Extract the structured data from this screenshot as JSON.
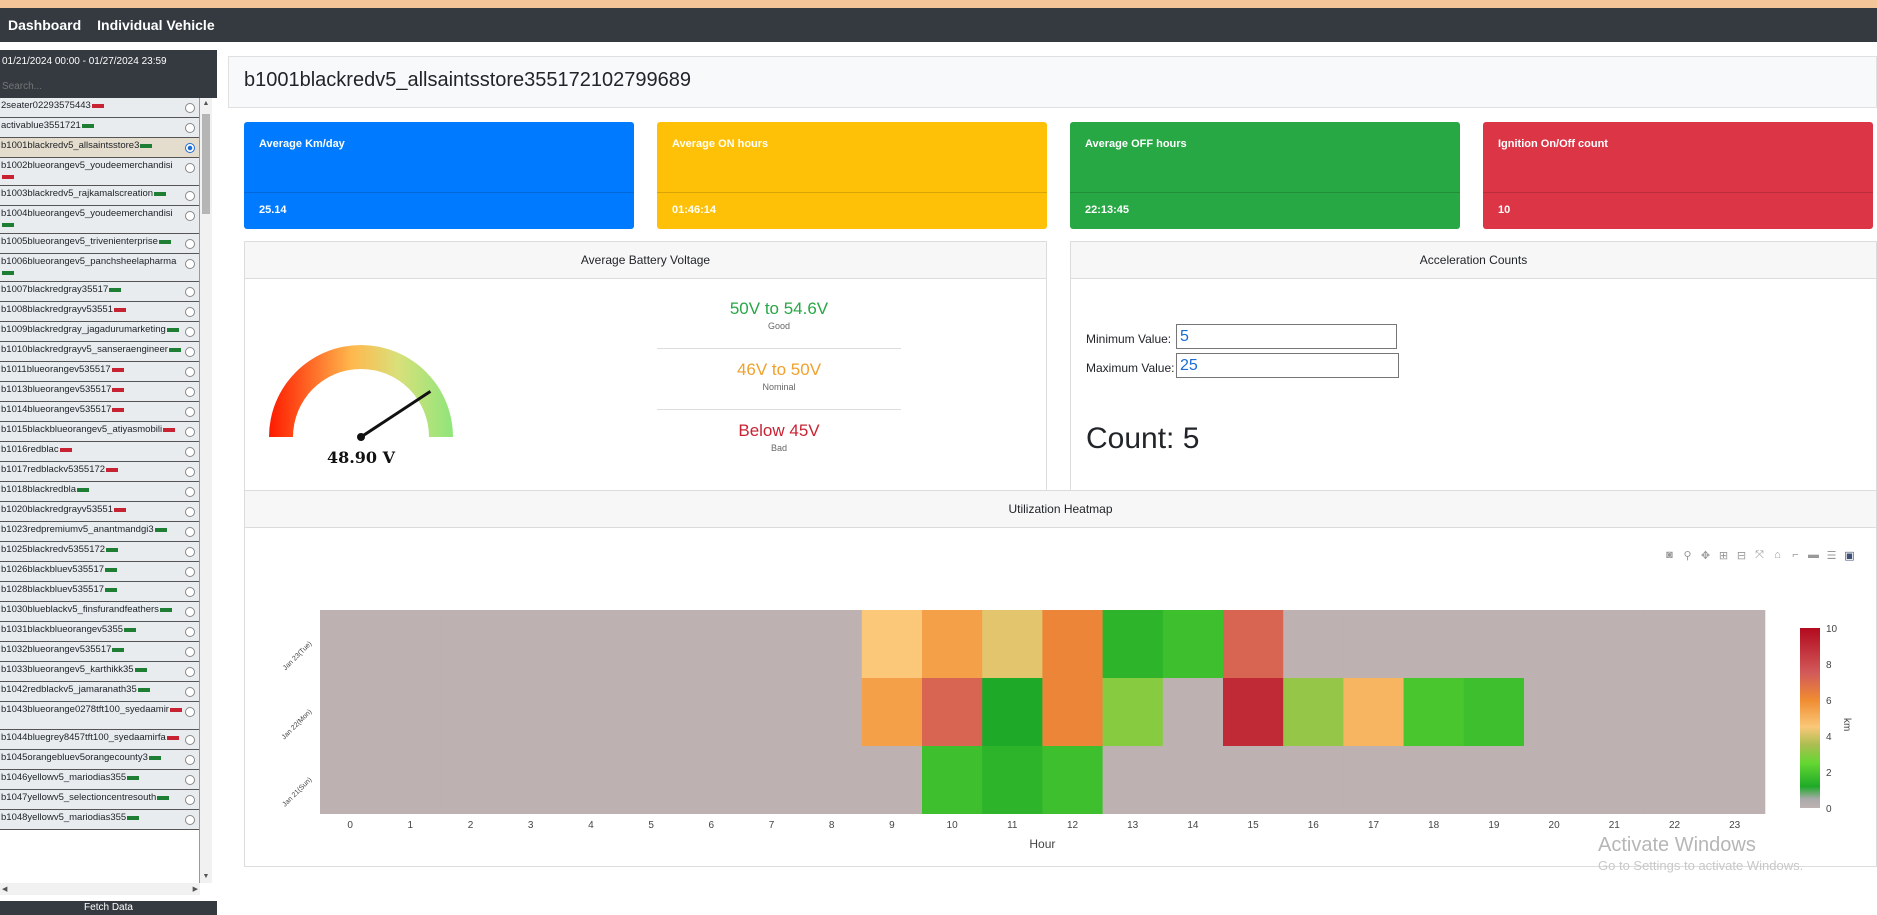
{
  "nav": {
    "items": [
      "Dashboard",
      "Individual Vehicle"
    ]
  },
  "sidebar": {
    "date_range": "01/21/2024 00:00 - 01/27/2024 23:59",
    "search_placeholder": "Search...",
    "vehicles": [
      {
        "label": "2seater02293575443",
        "battery": "red",
        "tall": false,
        "selected": false
      },
      {
        "label": "activablue3551721",
        "battery": "green",
        "tall": false,
        "selected": false
      },
      {
        "label": "b1001blackredv5_allsaintsstore3",
        "battery": "green",
        "tall": false,
        "selected": true
      },
      {
        "label": "b1002blueorangev5_youdeemerchandisi",
        "battery": "red",
        "tall": true,
        "selected": false
      },
      {
        "label": "b1003blackredv5_rajkamalscreation",
        "battery": "green",
        "tall": false,
        "selected": false
      },
      {
        "label": "b1004blueorangev5_youdeemerchandisi",
        "battery": "green",
        "tall": true,
        "selected": false
      },
      {
        "label": "b1005blueorangev5_trivenienterprise",
        "battery": "green",
        "tall": false,
        "selected": false
      },
      {
        "label": "b1006blueorangev5_panchsheelapharma",
        "battery": "green",
        "tall": true,
        "selected": false
      },
      {
        "label": "b1007blackredgray35517",
        "battery": "green",
        "tall": false,
        "selected": false
      },
      {
        "label": "b1008blackredgrayv53551",
        "battery": "red",
        "tall": false,
        "selected": false
      },
      {
        "label": "b1009blackredgray_jagadurumarketing",
        "battery": "green",
        "tall": false,
        "selected": false
      },
      {
        "label": "b1010blackredgrayv5_sanseraengineer",
        "battery": "green",
        "tall": false,
        "selected": false
      },
      {
        "label": "b1011blueorangev535517",
        "battery": "red",
        "tall": false,
        "selected": false
      },
      {
        "label": "b1013blueorangev535517",
        "battery": "red",
        "tall": false,
        "selected": false
      },
      {
        "label": "b1014blueorangev535517",
        "battery": "red",
        "tall": false,
        "selected": false
      },
      {
        "label": "b1015blackblueorangev5_atiyasmobili",
        "battery": "red",
        "tall": false,
        "selected": false
      },
      {
        "label": "b1016redblac",
        "battery": "red",
        "tall": false,
        "selected": false
      },
      {
        "label": "b1017redblackv5355172",
        "battery": "red",
        "tall": false,
        "selected": false
      },
      {
        "label": "b1018blackredbla",
        "battery": "green",
        "tall": false,
        "selected": false
      },
      {
        "label": "b1020blackredgrayv53551",
        "battery": "red",
        "tall": false,
        "selected": false
      },
      {
        "label": "b1023redpremiumv5_anantmandgi3",
        "battery": "green",
        "tall": false,
        "selected": false
      },
      {
        "label": "b1025blackredv5355172",
        "battery": "green",
        "tall": false,
        "selected": false
      },
      {
        "label": "b1026blackbluev535517",
        "battery": "green",
        "tall": false,
        "selected": false
      },
      {
        "label": "b1028blackbluev535517",
        "battery": "green",
        "tall": false,
        "selected": false
      },
      {
        "label": "b1030blueblackv5_finsfurandfeathers",
        "battery": "green",
        "tall": false,
        "selected": false
      },
      {
        "label": "b1031blackblueorangev5355",
        "battery": "green",
        "tall": false,
        "selected": false
      },
      {
        "label": "b1032blueorangev535517",
        "battery": "green",
        "tall": false,
        "selected": false
      },
      {
        "label": "b1033blueorangev5_karthikk35",
        "battery": "green",
        "tall": false,
        "selected": false
      },
      {
        "label": "b1042redblackv5_jamaranath35",
        "battery": "green",
        "tall": false,
        "selected": false
      },
      {
        "label": "b1043blueorange0278tft100_syedaamir",
        "battery": "red",
        "tall": true,
        "selected": false
      },
      {
        "label": "b1044bluegrey8457tft100_syedaamirfa",
        "battery": "red",
        "tall": false,
        "selected": false
      },
      {
        "label": "b1045orangebluev5orangecounty3",
        "battery": "green",
        "tall": false,
        "selected": false
      },
      {
        "label": "b1046yellowv5_mariodias355",
        "battery": "green",
        "tall": false,
        "selected": false
      },
      {
        "label": "b1047yellowv5_selectioncentresouth",
        "battery": "green",
        "tall": false,
        "selected": false
      },
      {
        "label": "b1048yellowv5_mariodias355",
        "battery": "green",
        "tall": false,
        "selected": false
      }
    ],
    "fetch_label": "Fetch Data"
  },
  "vehicle_title": "b1001blackredv5_allsaintsstore355172102799689",
  "cards": [
    {
      "title": "Average Km/day",
      "value": "25.14",
      "color": "#007bff"
    },
    {
      "title": "Average ON hours",
      "value": "01:46:14",
      "color": "#ffc107"
    },
    {
      "title": "Average OFF hours",
      "value": "22:13:45",
      "color": "#28a745"
    },
    {
      "title": "Ignition On/Off count",
      "value": "10",
      "color": "#dc3545"
    }
  ],
  "battery": {
    "panel_title": "Average Battery Voltage",
    "gauge_value": 48.9,
    "gauge_label": "48.90 V",
    "ranges": [
      {
        "title": "50V to 54.6V",
        "sub": "Good",
        "color": "#28a745"
      },
      {
        "title": "46V to 50V",
        "sub": "Nominal",
        "color": "#f0a12c"
      },
      {
        "title": "Below 45V",
        "sub": "Bad",
        "color": "#c82333"
      }
    ]
  },
  "accel": {
    "panel_title": "Acceleration Counts",
    "min_label": "Minimum Value:",
    "min_value": "5",
    "max_label": "Maximum Value:",
    "max_value": "25",
    "count_text": "Count: 5"
  },
  "heatmap": {
    "panel_title": "Utilization Heatmap",
    "toolbar_icons": [
      "camera-icon",
      "zoom-icon",
      "pan-icon",
      "zoom-in-icon",
      "zoom-out-icon",
      "autoscale-icon",
      "home-icon",
      "spike-icon",
      "hover-closest-icon",
      "hover-compare-icon",
      "plotly-logo-icon"
    ],
    "watermark_line1": "Activate Windows",
    "watermark_line2": "Go to Settings to activate Windows."
  },
  "chart_data": {
    "type": "heatmap",
    "xlabel": "Hour",
    "zlabel": "km",
    "x": [
      0,
      1,
      2,
      3,
      4,
      5,
      6,
      7,
      8,
      9,
      10,
      11,
      12,
      13,
      14,
      15,
      16,
      17,
      18,
      19,
      20,
      21,
      22,
      23
    ],
    "y": [
      "Jan 23(Tue)",
      "Jan 22(Mon)",
      "Jan 21(Sun)"
    ],
    "z": [
      [
        0,
        0,
        0,
        0,
        0,
        0,
        0,
        0,
        0,
        4.5,
        5.5,
        4.2,
        6.2,
        1.5,
        1.8,
        7.2,
        0,
        0,
        0,
        0,
        0,
        0,
        0,
        0
      ],
      [
        0,
        0,
        0,
        0,
        0,
        0,
        0,
        0,
        0,
        5.5,
        7.2,
        1.2,
        6.2,
        3,
        0,
        9,
        3.2,
        5,
        2,
        1.8,
        0,
        0,
        0,
        0
      ],
      [
        0,
        0,
        0,
        0,
        0,
        0,
        0,
        0,
        0,
        0,
        1.8,
        1.5,
        1.8,
        0,
        0,
        0,
        0,
        0,
        0,
        0,
        0,
        0,
        0,
        0
      ]
    ],
    "zlim": [
      0,
      10
    ],
    "colorbar_ticks": [
      0,
      2,
      4,
      6,
      8,
      10
    ]
  }
}
